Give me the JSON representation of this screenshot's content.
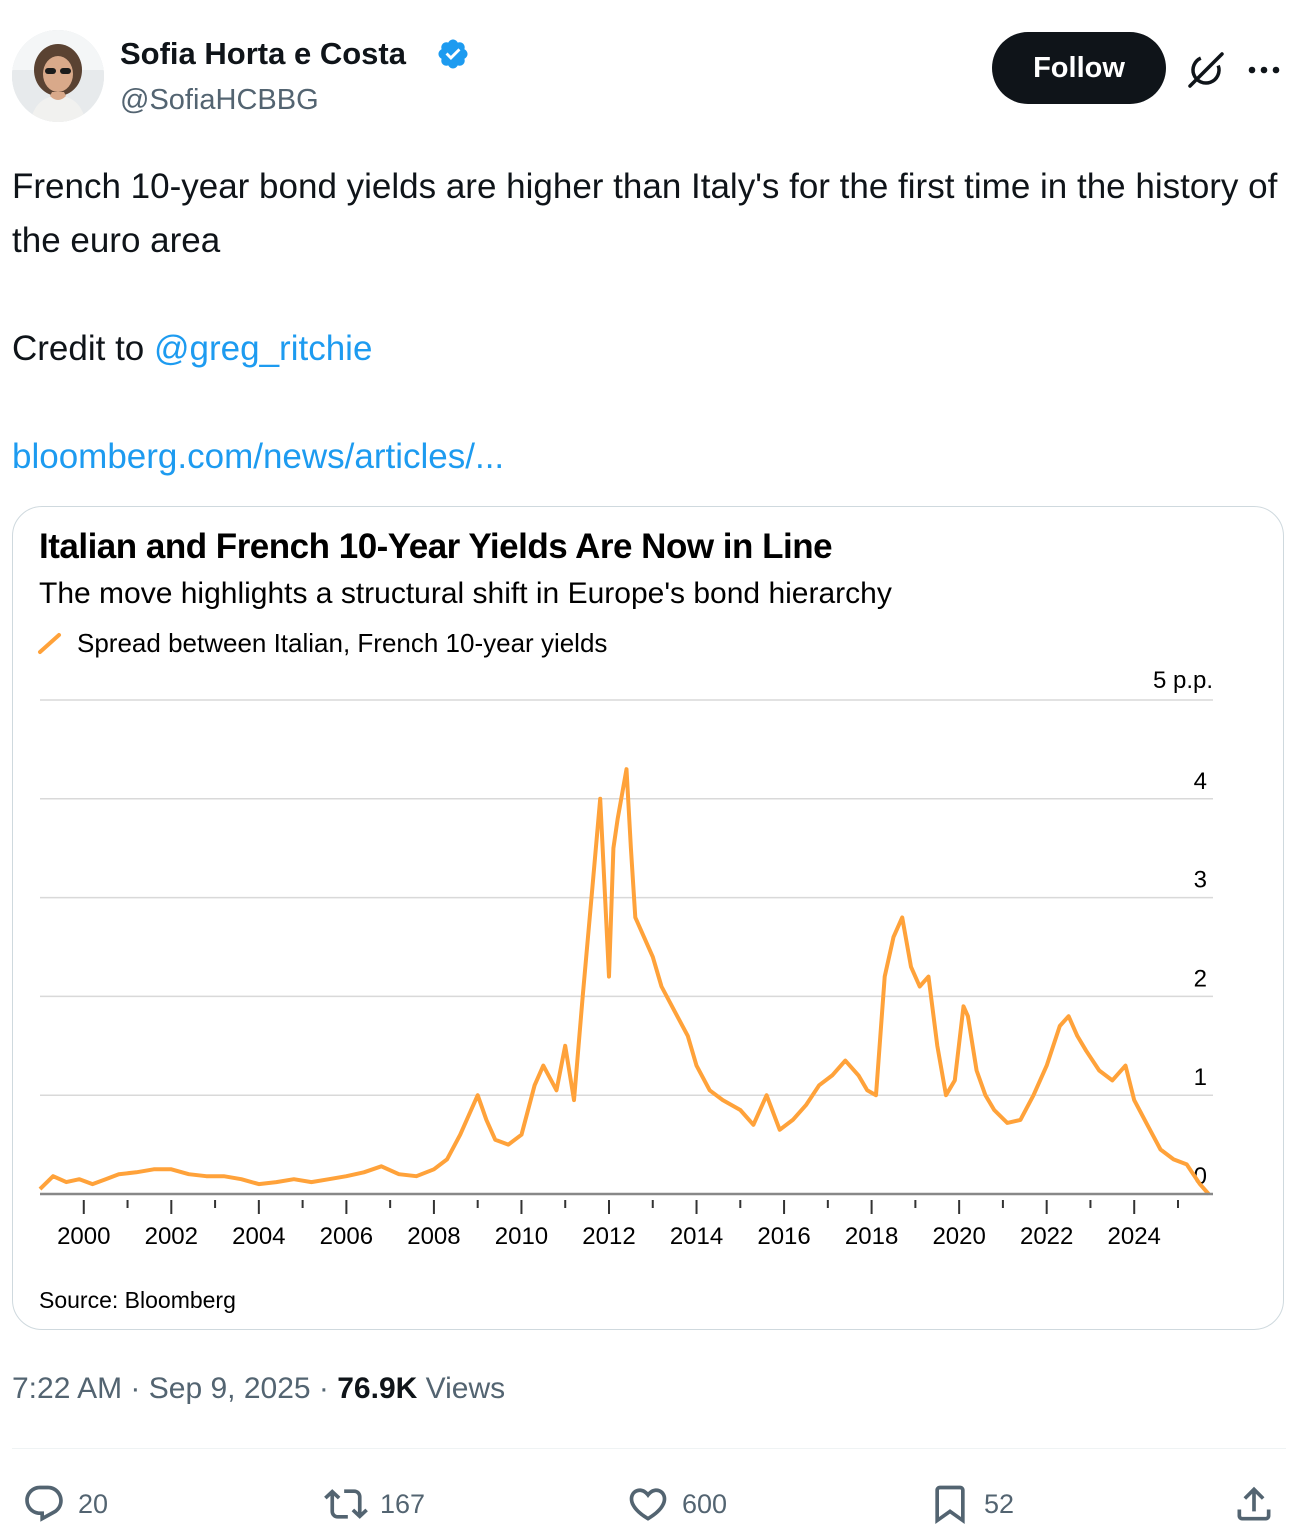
{
  "author": {
    "name": "Sofia Horta e Costa",
    "handle": "@SofiaHCBBG",
    "verified": true,
    "avatar_icon": "avatar-photo"
  },
  "header": {
    "follow_label": "Follow",
    "grok_icon": "grok-icon",
    "more_icon": "more-icon"
  },
  "tweet": {
    "line1": "French 10-year bond yields are higher than Italy's for the first time in the history of the euro area",
    "credit_prefix": "Credit to ",
    "mention": "@greg_ritchie",
    "url": "bloomberg.com/news/articles/..."
  },
  "chart_data": {
    "type": "line",
    "title": "Italian and French 10-Year Yields Are Now in Line",
    "subtitle": "The move highlights a structural shift in Europe's bond hierarchy",
    "legend": "Spread between Italian, French 10-year yields",
    "unit_label": "5 p.p.",
    "source": "Source: Bloomberg",
    "series_color": "#ffa23a",
    "grid": true,
    "ylim": [
      0,
      5
    ],
    "yticks": [
      "0",
      "1",
      "2",
      "3",
      "4"
    ],
    "xlim": [
      1999.0,
      2025.8
    ],
    "xticks": [
      "2000",
      "2002",
      "2004",
      "2006",
      "2008",
      "2010",
      "2012",
      "2014",
      "2016",
      "2018",
      "2020",
      "2022",
      "2024"
    ],
    "series": [
      {
        "x": [
          1999.0,
          1999.3,
          1999.6,
          1999.9,
          2000.2,
          2000.5,
          2000.8,
          2001.2,
          2001.6,
          2002.0,
          2002.4,
          2002.8,
          2003.2,
          2003.6,
          2004.0,
          2004.4,
          2004.8,
          2005.2,
          2005.6,
          2006.0,
          2006.4,
          2006.8,
          2007.2,
          2007.6,
          2008.0,
          2008.3,
          2008.6,
          2008.8,
          2009.0,
          2009.2,
          2009.4,
          2009.7,
          2010.0,
          2010.3,
          2010.5,
          2010.8,
          2011.0,
          2011.2,
          2011.4,
          2011.6,
          2011.8,
          2011.9,
          2012.0,
          2012.1,
          2012.2,
          2012.4,
          2012.5,
          2012.6,
          2012.8,
          2013.0,
          2013.2,
          2013.5,
          2013.8,
          2014.0,
          2014.3,
          2014.6,
          2015.0,
          2015.3,
          2015.6,
          2015.9,
          2016.2,
          2016.5,
          2016.8,
          2017.1,
          2017.4,
          2017.7,
          2017.9,
          2018.1,
          2018.3,
          2018.5,
          2018.7,
          2018.9,
          2019.1,
          2019.3,
          2019.5,
          2019.7,
          2019.9,
          2020.1,
          2020.2,
          2020.4,
          2020.6,
          2020.8,
          2021.1,
          2021.4,
          2021.7,
          2022.0,
          2022.3,
          2022.5,
          2022.7,
          2022.9,
          2023.2,
          2023.5,
          2023.8,
          2024.0,
          2024.3,
          2024.6,
          2024.9,
          2025.2,
          2025.5,
          2025.7
        ],
        "y": [
          0.05,
          0.18,
          0.12,
          0.15,
          0.1,
          0.15,
          0.2,
          0.22,
          0.25,
          0.25,
          0.2,
          0.18,
          0.18,
          0.15,
          0.1,
          0.12,
          0.15,
          0.12,
          0.15,
          0.18,
          0.22,
          0.28,
          0.2,
          0.18,
          0.25,
          0.35,
          0.6,
          0.8,
          1.0,
          0.75,
          0.55,
          0.5,
          0.6,
          1.1,
          1.3,
          1.05,
          1.5,
          0.95,
          2.0,
          3.0,
          4.0,
          3.1,
          2.2,
          3.5,
          3.8,
          4.3,
          3.5,
          2.8,
          2.6,
          2.4,
          2.1,
          1.85,
          1.6,
          1.3,
          1.05,
          0.95,
          0.85,
          0.7,
          1.0,
          0.65,
          0.75,
          0.9,
          1.1,
          1.2,
          1.35,
          1.2,
          1.05,
          1.0,
          2.2,
          2.6,
          2.8,
          2.3,
          2.1,
          2.2,
          1.5,
          1.0,
          1.15,
          1.9,
          1.8,
          1.25,
          1.0,
          0.85,
          0.72,
          0.75,
          1.0,
          1.3,
          1.7,
          1.8,
          1.6,
          1.45,
          1.25,
          1.15,
          1.3,
          0.95,
          0.7,
          0.45,
          0.35,
          0.3,
          0.1,
          0.0
        ]
      }
    ]
  },
  "meta": {
    "time": "7:22 AM",
    "separator": " · ",
    "date": "Sep 9, 2025",
    "views_count": "76.9K",
    "views_label": " Views"
  },
  "actions": {
    "replies": "20",
    "reposts": "167",
    "likes": "600",
    "bookmarks": "52"
  }
}
